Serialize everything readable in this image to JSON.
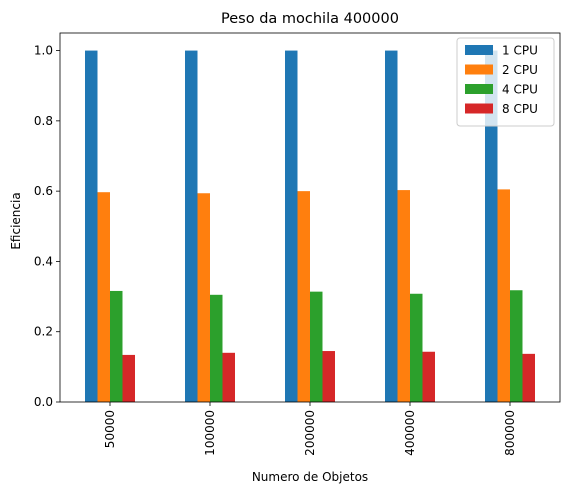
{
  "chart_data": {
    "type": "bar",
    "title": "Peso da mochila 400000",
    "xlabel": "Numero de Objetos",
    "ylabel": "Eficiencia",
    "categories": [
      "50000",
      "100000",
      "200000",
      "400000",
      "800000"
    ],
    "series": [
      {
        "name": "1 CPU",
        "color": "#1f77b4",
        "values": [
          1.0,
          1.0,
          1.0,
          1.0,
          1.0
        ]
      },
      {
        "name": "2 CPU",
        "color": "#ff7f0e",
        "values": [
          0.597,
          0.594,
          0.6,
          0.603,
          0.605
        ]
      },
      {
        "name": "4 CPU",
        "color": "#2ca02c",
        "values": [
          0.316,
          0.305,
          0.314,
          0.308,
          0.318
        ]
      },
      {
        "name": "8 CPU",
        "color": "#d62728",
        "values": [
          0.134,
          0.14,
          0.145,
          0.143,
          0.137
        ]
      }
    ],
    "ylim": [
      0,
      1.05
    ],
    "yticks": [
      "0.0",
      "0.2",
      "0.4",
      "0.6",
      "0.8",
      "1.0"
    ],
    "grid": false,
    "legend_position": "top-right"
  }
}
